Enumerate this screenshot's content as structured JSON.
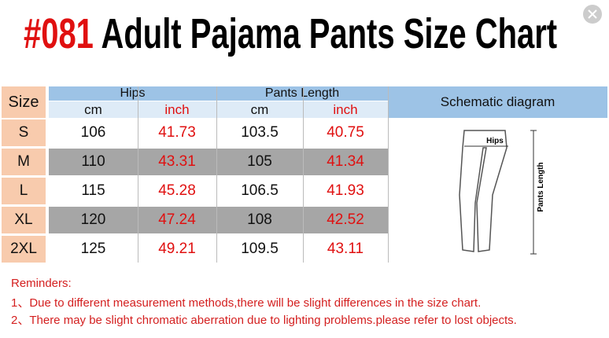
{
  "header": {
    "code": "#081",
    "title": "Adult Pajama Pants Size Chart"
  },
  "table": {
    "columns": [
      "Size",
      "Hips",
      "Pants Length",
      "Schematic diagram"
    ],
    "units": [
      "cm",
      "inch",
      "cm",
      "inch"
    ],
    "rows": [
      [
        "S",
        106,
        41.73,
        103.5,
        40.75
      ],
      [
        "M",
        110,
        43.31,
        105,
        41.34
      ],
      [
        "L",
        115,
        45.28,
        106.5,
        41.93
      ],
      [
        "XL",
        120,
        47.24,
        108,
        42.52
      ],
      [
        "2XL",
        125,
        49.21,
        109.5,
        43.11
      ]
    ]
  },
  "diagram": {
    "hips": "Hips",
    "length": "Pants Length"
  },
  "reminders": {
    "title": "Reminders:",
    "items": [
      "1、Due to different measurement methods,there will be slight differences in the size chart.",
      "2、There may be slight chromatic aberration due to lighting problems.please refer to lost objects."
    ]
  }
}
